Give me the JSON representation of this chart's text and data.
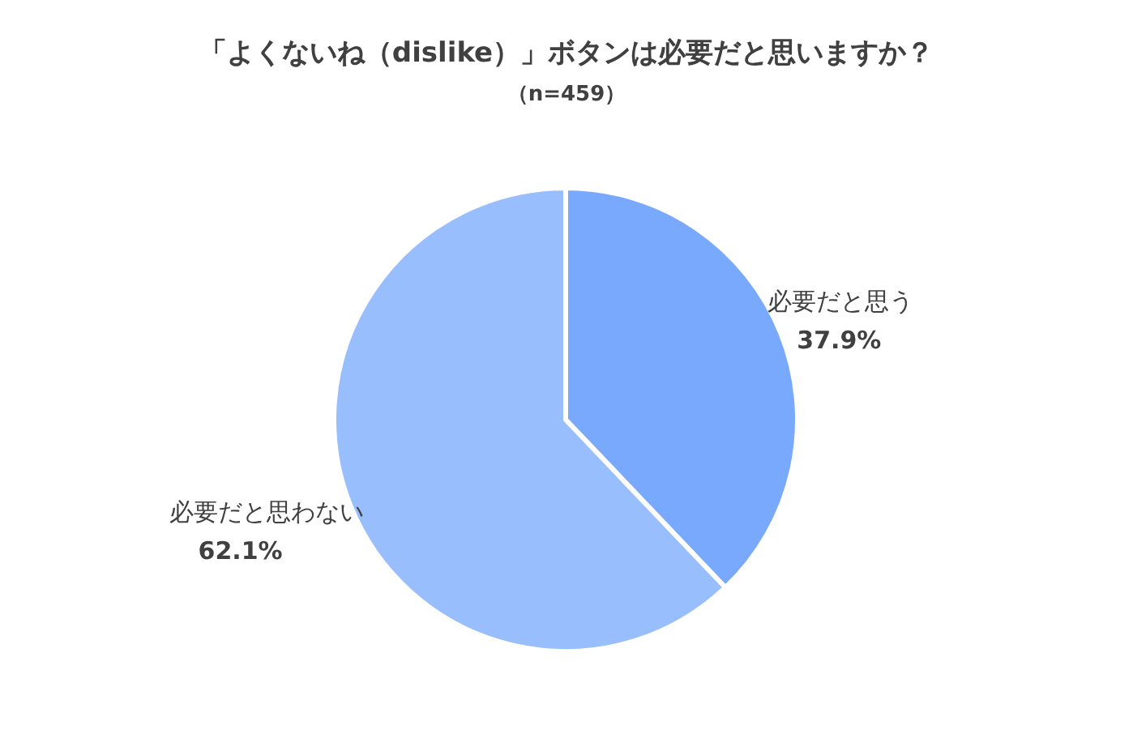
{
  "chart_data": {
    "type": "pie",
    "title": "「よくないね（dislike）」ボタンは必要だと思いますか？",
    "subtitle": "（n=459）",
    "categories": [
      "必要だと思う",
      "必要だと思わない"
    ],
    "values": [
      37.9,
      62.1
    ],
    "colors": [
      "#78a9fd",
      "#98befd"
    ],
    "value_labels": [
      "37.9%",
      "62.1%"
    ]
  }
}
